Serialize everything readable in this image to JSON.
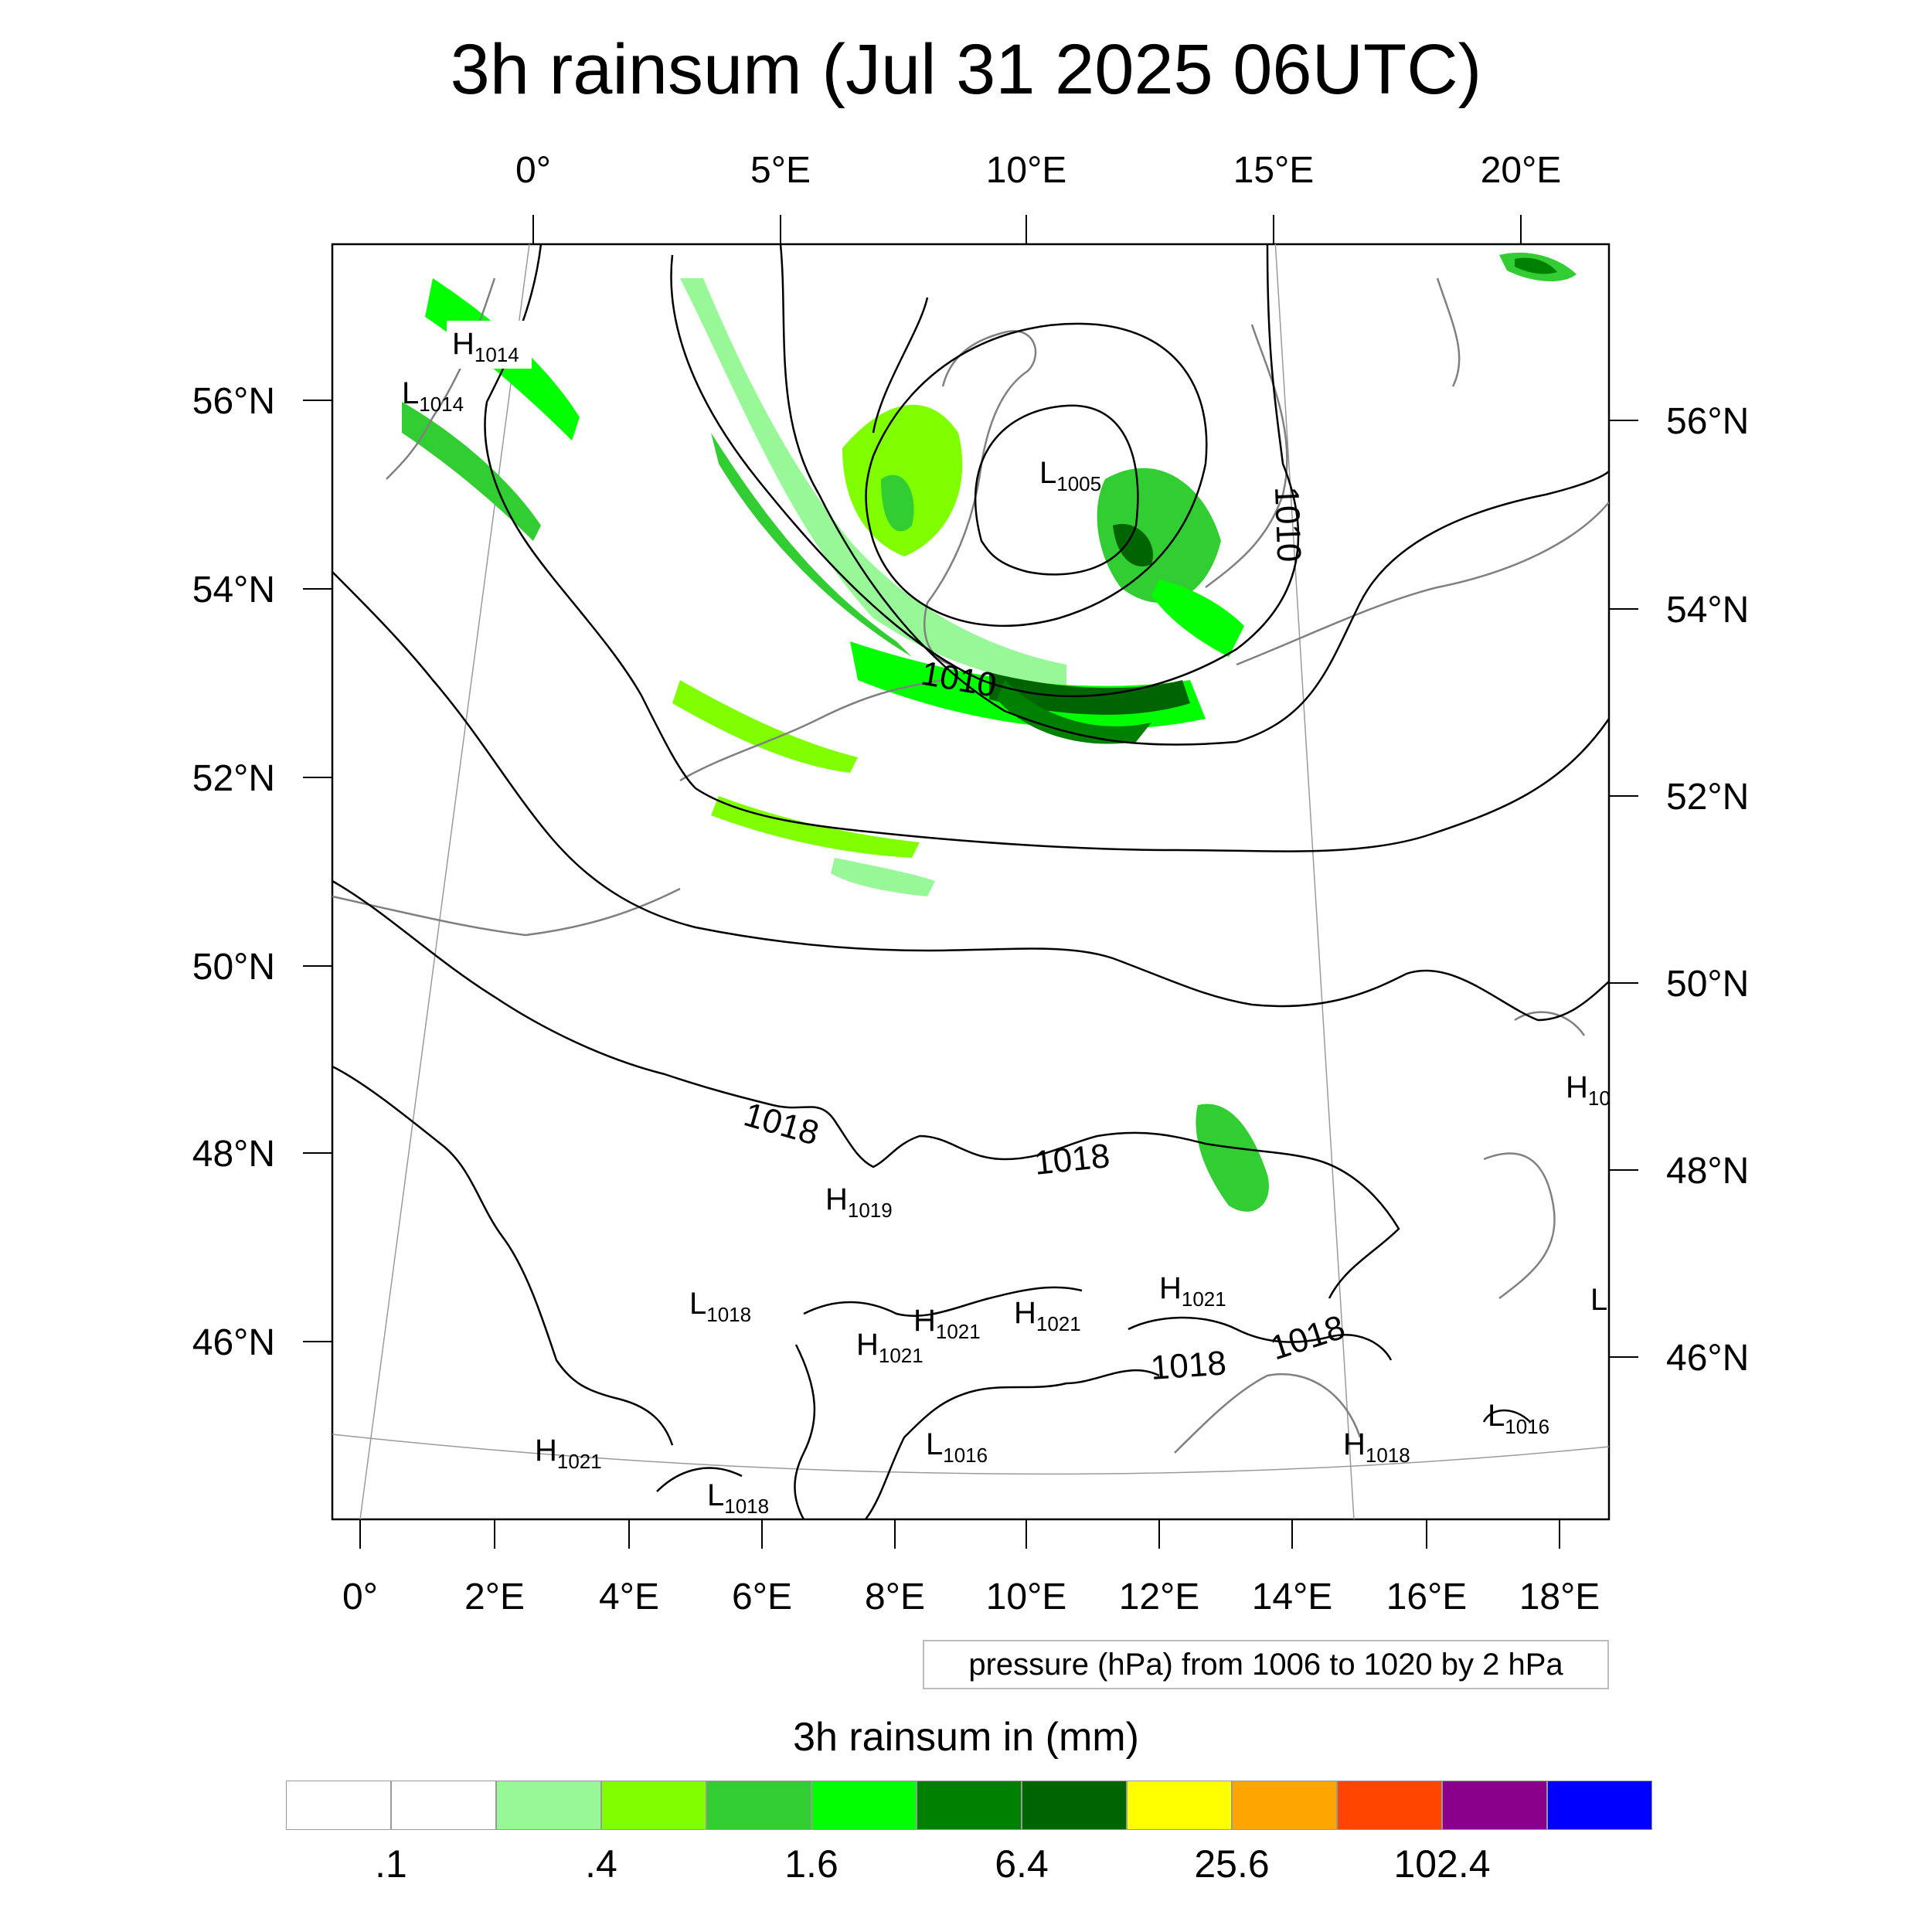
{
  "title": "3h rainsum (Jul 31 2025 06UTC)",
  "top_lon_labels": [
    "0°",
    "5°E",
    "10°E",
    "15°E",
    "20°E"
  ],
  "bottom_lon_labels": [
    "0°",
    "2°E",
    "4°E",
    "6°E",
    "8°E",
    "10°E",
    "12°E",
    "14°E",
    "16°E",
    "18°E"
  ],
  "left_lat_labels": [
    "56°N",
    "54°N",
    "52°N",
    "50°N",
    "48°N",
    "46°N"
  ],
  "right_lat_labels": [
    "56°N",
    "54°N",
    "52°N",
    "50°N",
    "48°N",
    "46°N"
  ],
  "isobar_labels": [
    "1010",
    "1010",
    "1018",
    "1018",
    "1018",
    "1018"
  ],
  "pressure_centers": [
    {
      "type": "H",
      "value": "1014"
    },
    {
      "type": "L",
      "value": "1014"
    },
    {
      "type": "L",
      "value": "1005"
    },
    {
      "type": "H",
      "value": "1019"
    },
    {
      "type": "L",
      "value": "1018"
    },
    {
      "type": "H",
      "value": "1021"
    },
    {
      "type": "H",
      "value": "1021"
    },
    {
      "type": "H",
      "value": "1021"
    },
    {
      "type": "H",
      "value": "1021"
    },
    {
      "type": "H",
      "value": "1021"
    },
    {
      "type": "L",
      "value": "1018"
    },
    {
      "type": "L",
      "value": "1016"
    },
    {
      "type": "H",
      "value": "1018"
    },
    {
      "type": "L",
      "value": "1016"
    },
    {
      "type": "H",
      "value": "10"
    },
    {
      "type": "L",
      "value": ""
    }
  ],
  "contour_note": "pressure (hPa) from 1006 to 1020 by 2 hPa",
  "colorbar": {
    "title": "3h rainsum in (mm)",
    "colors": [
      "#ffffff",
      "#ffffff",
      "#98f898",
      "#80ff00",
      "#32cd32",
      "#00ff00",
      "#008000",
      "#006400",
      "#ffff00",
      "#ffa500",
      "#ff4500",
      "#8b008b",
      "#0000ff"
    ],
    "labels": [
      ".1",
      ".4",
      "1.6",
      "6.4",
      "25.6",
      "102.4"
    ]
  }
}
